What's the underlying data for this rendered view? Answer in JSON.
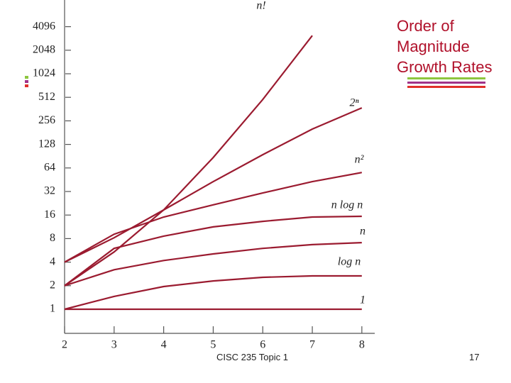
{
  "slide": {
    "title": "Order of Magnitude Growth Rates",
    "footer": "CISC 235 Topic 1",
    "page": "17"
  },
  "chart_data": {
    "type": "line",
    "log_y": true,
    "color": "#9b1b30",
    "x": [
      2,
      3,
      4,
      5,
      6,
      7,
      8
    ],
    "xlim": [
      2,
      8.25
    ],
    "xticks": [
      2,
      3,
      4,
      5,
      6,
      7,
      8
    ],
    "ylim": [
      0.5,
      8192
    ],
    "yticks": [
      1,
      2,
      4,
      8,
      16,
      32,
      64,
      128,
      256,
      512,
      1024,
      2048,
      4096
    ],
    "series": [
      {
        "name": "n!",
        "values": [
          2,
          5.4,
          18.6,
          87,
          480,
          3150,
          null
        ]
      },
      {
        "name": "2ⁿ",
        "values": [
          4,
          8.2,
          18.6,
          42.8,
          94.6,
          201,
          375
        ]
      },
      {
        "name": "n²",
        "values": [
          4,
          9.1,
          15.1,
          21.6,
          30.6,
          42.8,
          56
        ]
      },
      {
        "name": "n log n",
        "values": [
          2,
          6.0,
          8.6,
          11.3,
          13.3,
          15.1,
          15.4
        ]
      },
      {
        "name": "n",
        "values": [
          2,
          3.2,
          4.2,
          5.1,
          6.0,
          6.7,
          7.1
        ]
      },
      {
        "name": "log n",
        "values": [
          1,
          1.46,
          1.95,
          2.3,
          2.56,
          2.67,
          2.67
        ]
      },
      {
        "name": "1",
        "values": [
          1,
          1,
          1,
          1,
          1,
          1,
          1
        ]
      }
    ]
  }
}
